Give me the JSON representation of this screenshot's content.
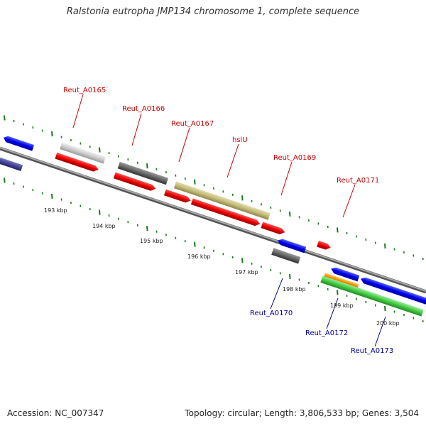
{
  "title": "Ralstonia eutropha JMP134 chromosome 1, complete sequence",
  "footer": {
    "accession": "Accession: NC_007347",
    "topology": "Topology: circular; Length: 3,806,533 bp; Genes: 3,504"
  },
  "colors": {
    "forward_label": "#cc0000",
    "reverse_label": "#000099",
    "backbone": "#888888",
    "tick": "#1a7a1a"
  },
  "scale_labels": [
    "193 kbp",
    "194 kbp",
    "195 kbp",
    "196 kbp",
    "197 kbp",
    "198 kbp",
    "199 kbp",
    "200 kbp"
  ],
  "forward_labels": [
    "Reut_A0165",
    "Reut_A0166",
    "Reut_A0167",
    "hslU",
    "Reut_A0169",
    "Reut_A0171"
  ],
  "reverse_labels": [
    "Reut_A0170",
    "Reut_A0172",
    "Reut_A0173"
  ]
}
